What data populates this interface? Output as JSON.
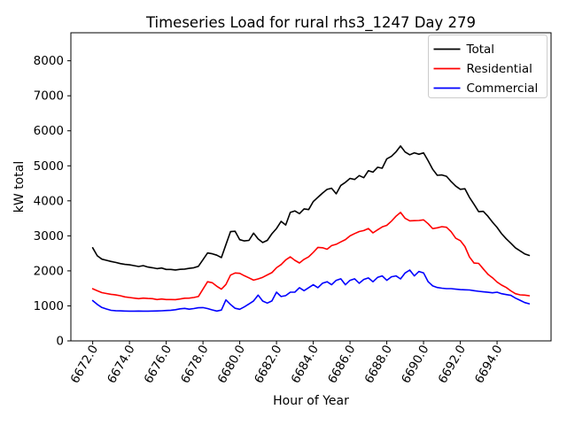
{
  "figure": {
    "background": "#ffffff",
    "frame_color": "#000000"
  },
  "chart_data": {
    "type": "line",
    "title": "Timeseries Load for rural rhs3_1247  Day 279",
    "xlabel": "Hour of Year",
    "ylabel": "kW total",
    "xlim": [
      6670.8125,
      6696.9375
    ],
    "ylim": [
      0,
      8800
    ],
    "grid": false,
    "x_ticks": [
      6672,
      6674,
      6676,
      6678,
      6680,
      6682,
      6684,
      6686,
      6688,
      6690,
      6692,
      6694
    ],
    "x_tick_labels": [
      "6672.0",
      "6674.0",
      "6676.0",
      "6678.0",
      "6680.0",
      "6682.0",
      "6684.0",
      "6686.0",
      "6688.0",
      "6690.0",
      "6692.0",
      "6694.0"
    ],
    "x_tick_rotation_deg": 60,
    "y_ticks": [
      0,
      1000,
      2000,
      3000,
      4000,
      5000,
      6000,
      7000,
      8000
    ],
    "y_tick_labels": [
      "0",
      "1000",
      "2000",
      "3000",
      "4000",
      "5000",
      "6000",
      "7000",
      "8000"
    ],
    "x_start": 6672.0,
    "x_step": 0.25,
    "x_end": 6695.75,
    "legend": {
      "position": "upper right",
      "border_color": "#cccccc",
      "background": "#ffffff"
    },
    "series": [
      {
        "name": "Total",
        "color": "#000000",
        "values": [
          2660,
          2430,
          2335,
          2300,
          2268,
          2240,
          2208,
          2185,
          2172,
          2150,
          2125,
          2150,
          2108,
          2090,
          2063,
          2080,
          2040,
          2040,
          2025,
          2043,
          2052,
          2070,
          2090,
          2130,
          2320,
          2512,
          2488,
          2447,
          2380,
          2750,
          3120,
          3130,
          2890,
          2855,
          2870,
          3078,
          2910,
          2810,
          2870,
          3060,
          3210,
          3415,
          3310,
          3669,
          3711,
          3635,
          3770,
          3750,
          3981,
          4100,
          4220,
          4326,
          4360,
          4200,
          4440,
          4530,
          4640,
          4610,
          4720,
          4660,
          4860,
          4820,
          4960,
          4930,
          5200,
          5270,
          5400,
          5566,
          5395,
          5315,
          5372,
          5330,
          5372,
          5144,
          4900,
          4730,
          4740,
          4700,
          4550,
          4420,
          4330,
          4345,
          4100,
          3900,
          3690,
          3700,
          3560,
          3390,
          3240,
          3060,
          2915,
          2788,
          2657,
          2572,
          2485,
          2440
        ]
      },
      {
        "name": "Residential",
        "color": "#ff0000",
        "values": [
          1490,
          1430,
          1378,
          1352,
          1330,
          1312,
          1290,
          1258,
          1240,
          1222,
          1207,
          1222,
          1210,
          1205,
          1182,
          1196,
          1180,
          1182,
          1178,
          1196,
          1220,
          1222,
          1240,
          1268,
          1476,
          1688,
          1662,
          1560,
          1478,
          1610,
          1880,
          1940,
          1930,
          1860,
          1800,
          1735,
          1770,
          1815,
          1885,
          1950,
          2090,
          2180,
          2310,
          2400,
          2300,
          2225,
          2330,
          2400,
          2525,
          2670,
          2660,
          2617,
          2722,
          2758,
          2826,
          2894,
          3000,
          3064,
          3124,
          3150,
          3210,
          3085,
          3170,
          3255,
          3300,
          3420,
          3560,
          3670,
          3500,
          3430,
          3435,
          3440,
          3458,
          3345,
          3206,
          3228,
          3263,
          3245,
          3118,
          2930,
          2862,
          2692,
          2398,
          2224,
          2213,
          2056,
          1903,
          1803,
          1679,
          1593,
          1525,
          1428,
          1349,
          1314,
          1307,
          1290
        ]
      },
      {
        "name": "Commercial",
        "color": "#0000ff",
        "values": [
          1150,
          1042,
          953,
          910,
          872,
          862,
          856,
          852,
          850,
          849,
          851,
          849,
          850,
          852,
          854,
          860,
          868,
          874,
          890,
          915,
          928,
          906,
          922,
          945,
          950,
          924,
          886,
          851,
          880,
          1170,
          1040,
          930,
          903,
          970,
          1055,
          1140,
          1308,
          1139,
          1080,
          1140,
          1392,
          1266,
          1291,
          1392,
          1392,
          1519,
          1434,
          1519,
          1603,
          1519,
          1645,
          1688,
          1603,
          1730,
          1772,
          1603,
          1730,
          1772,
          1645,
          1755,
          1797,
          1688,
          1814,
          1856,
          1730,
          1831,
          1856,
          1771,
          1940,
          2024,
          1855,
          1982,
          1940,
          1690,
          1570,
          1525,
          1505,
          1493,
          1493,
          1478,
          1465,
          1459,
          1455,
          1434,
          1415,
          1400,
          1388,
          1374,
          1390,
          1349,
          1323,
          1300,
          1222,
          1160,
          1095,
          1060
        ]
      }
    ]
  }
}
